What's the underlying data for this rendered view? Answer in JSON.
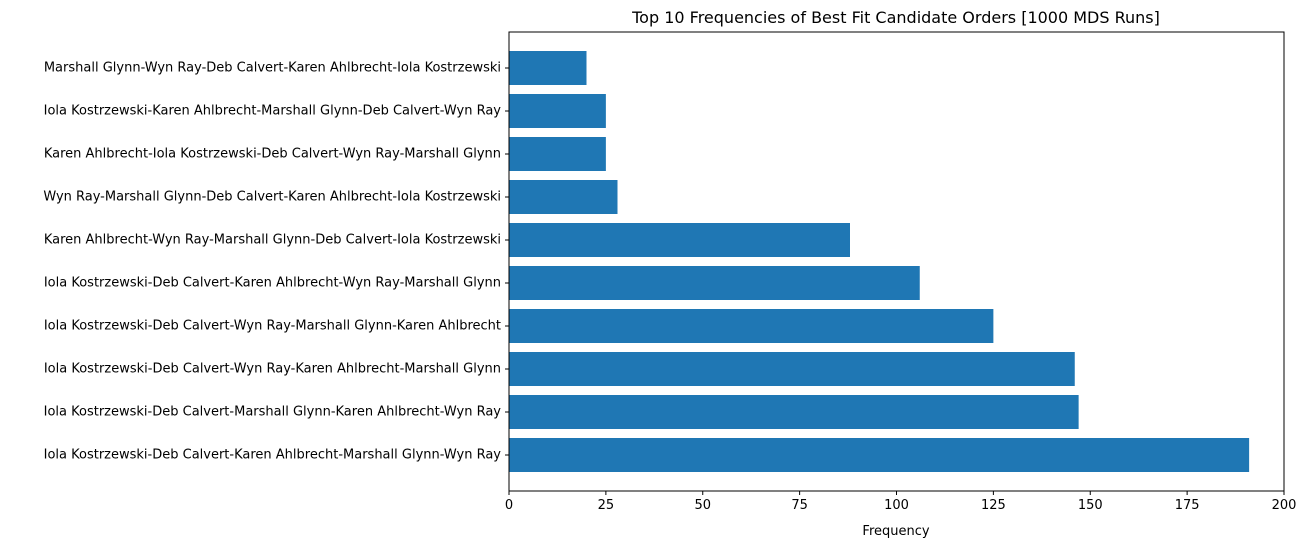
{
  "chart_data": {
    "type": "bar",
    "orientation": "horizontal",
    "title": "Top 10 Frequencies of Best Fit Candidate Orders [1000 MDS Runs]",
    "xlabel": "Frequency",
    "ylabel": "",
    "xlim": [
      0,
      200
    ],
    "xticks": [
      0,
      25,
      50,
      75,
      100,
      125,
      150,
      175,
      200
    ],
    "grid": false,
    "bar_color": "#1f77b4",
    "categories": [
      "Iola Kostrzewski-Deb Calvert-Karen Ahlbrecht-Marshall Glynn-Wyn Ray",
      "Iola Kostrzewski-Deb Calvert-Marshall Glynn-Karen Ahlbrecht-Wyn Ray",
      "Iola Kostrzewski-Deb Calvert-Wyn Ray-Karen Ahlbrecht-Marshall Glynn",
      "Iola Kostrzewski-Deb Calvert-Wyn Ray-Marshall Glynn-Karen Ahlbrecht",
      "Iola Kostrzewski-Deb Calvert-Karen Ahlbrecht-Wyn Ray-Marshall Glynn",
      "Karen Ahlbrecht-Wyn Ray-Marshall Glynn-Deb Calvert-Iola Kostrzewski",
      "Wyn Ray-Marshall Glynn-Deb Calvert-Karen Ahlbrecht-Iola Kostrzewski",
      "Karen Ahlbrecht-Iola Kostrzewski-Deb Calvert-Wyn Ray-Marshall Glynn",
      "Iola Kostrzewski-Karen Ahlbrecht-Marshall Glynn-Deb Calvert-Wyn Ray",
      "Marshall Glynn-Wyn Ray-Deb Calvert-Karen Ahlbrecht-Iola Kostrzewski"
    ],
    "values": [
      191,
      147,
      146,
      125,
      106,
      88,
      28,
      25,
      25,
      20
    ]
  }
}
